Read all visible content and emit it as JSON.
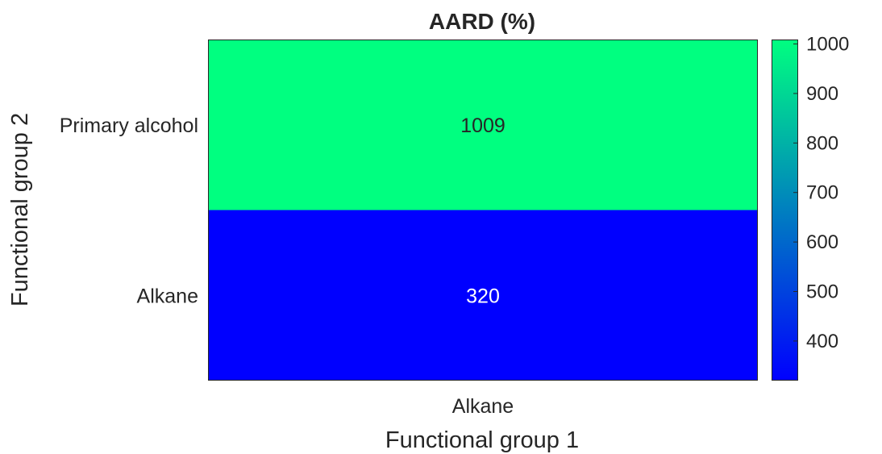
{
  "chart_data": {
    "type": "heatmap",
    "title": "AARD (%)",
    "xlabel": "Functional group 1",
    "ylabel": "Functional group 2",
    "x_categories": [
      "Alkane"
    ],
    "y_categories": [
      "Primary alcohol",
      "Alkane"
    ],
    "values": [
      [
        1009
      ],
      [
        320
      ]
    ],
    "colormap": {
      "name": "winter",
      "low_color": "#0000ff",
      "high_color": "#00ff80"
    },
    "clim": [
      320,
      1009
    ],
    "colorbar_ticks": [
      400,
      500,
      600,
      700,
      800,
      900,
      1000
    ],
    "colorbar_tick_labels": [
      "400",
      "500",
      "600",
      "700",
      "800",
      "900",
      "1000"
    ],
    "cell_label_colors": {
      "light": "#262626",
      "dark": "#ffffff"
    }
  }
}
